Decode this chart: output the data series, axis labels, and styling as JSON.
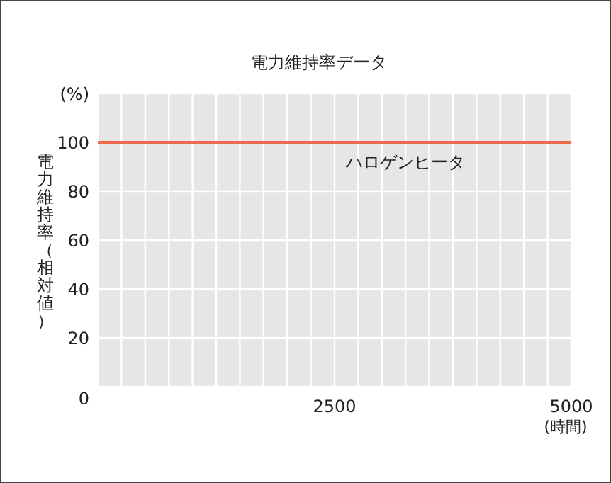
{
  "chart_data": {
    "type": "line",
    "title": "電力維持率データ",
    "xlabel": "(時間)",
    "ylabel": "電力維持率（相対値）",
    "xlim": [
      0,
      5000
    ],
    "ylim": [
      0,
      120
    ],
    "xticks": [
      {
        "value": 0,
        "label": null
      },
      {
        "value": 250,
        "label": null
      },
      {
        "value": 500,
        "label": null
      },
      {
        "value": 750,
        "label": null
      },
      {
        "value": 1000,
        "label": null
      },
      {
        "value": 1250,
        "label": null
      },
      {
        "value": 1500,
        "label": null
      },
      {
        "value": 1750,
        "label": null
      },
      {
        "value": 2000,
        "label": null
      },
      {
        "value": 2250,
        "label": null
      },
      2500,
      {
        "value": 2750,
        "label": null
      },
      {
        "value": 3000,
        "label": null
      },
      {
        "value": 3250,
        "label": null
      },
      {
        "value": 3500,
        "label": null
      },
      {
        "value": 3750,
        "label": null
      },
      {
        "value": 4000,
        "label": null
      },
      {
        "value": 4250,
        "label": null
      },
      {
        "value": 4500,
        "label": null
      },
      {
        "value": 4750,
        "label": null
      },
      5000
    ],
    "yticks": [
      0,
      20,
      40,
      60,
      80,
      100,
      {
        "value": 120,
        "label": "(%)"
      }
    ],
    "grid": true,
    "legend": false,
    "series": [
      {
        "name": "ハロゲンヒータ",
        "color": "#ee6a4f",
        "x": [
          0,
          5000
        ],
        "values": [
          100,
          100
        ]
      }
    ]
  }
}
